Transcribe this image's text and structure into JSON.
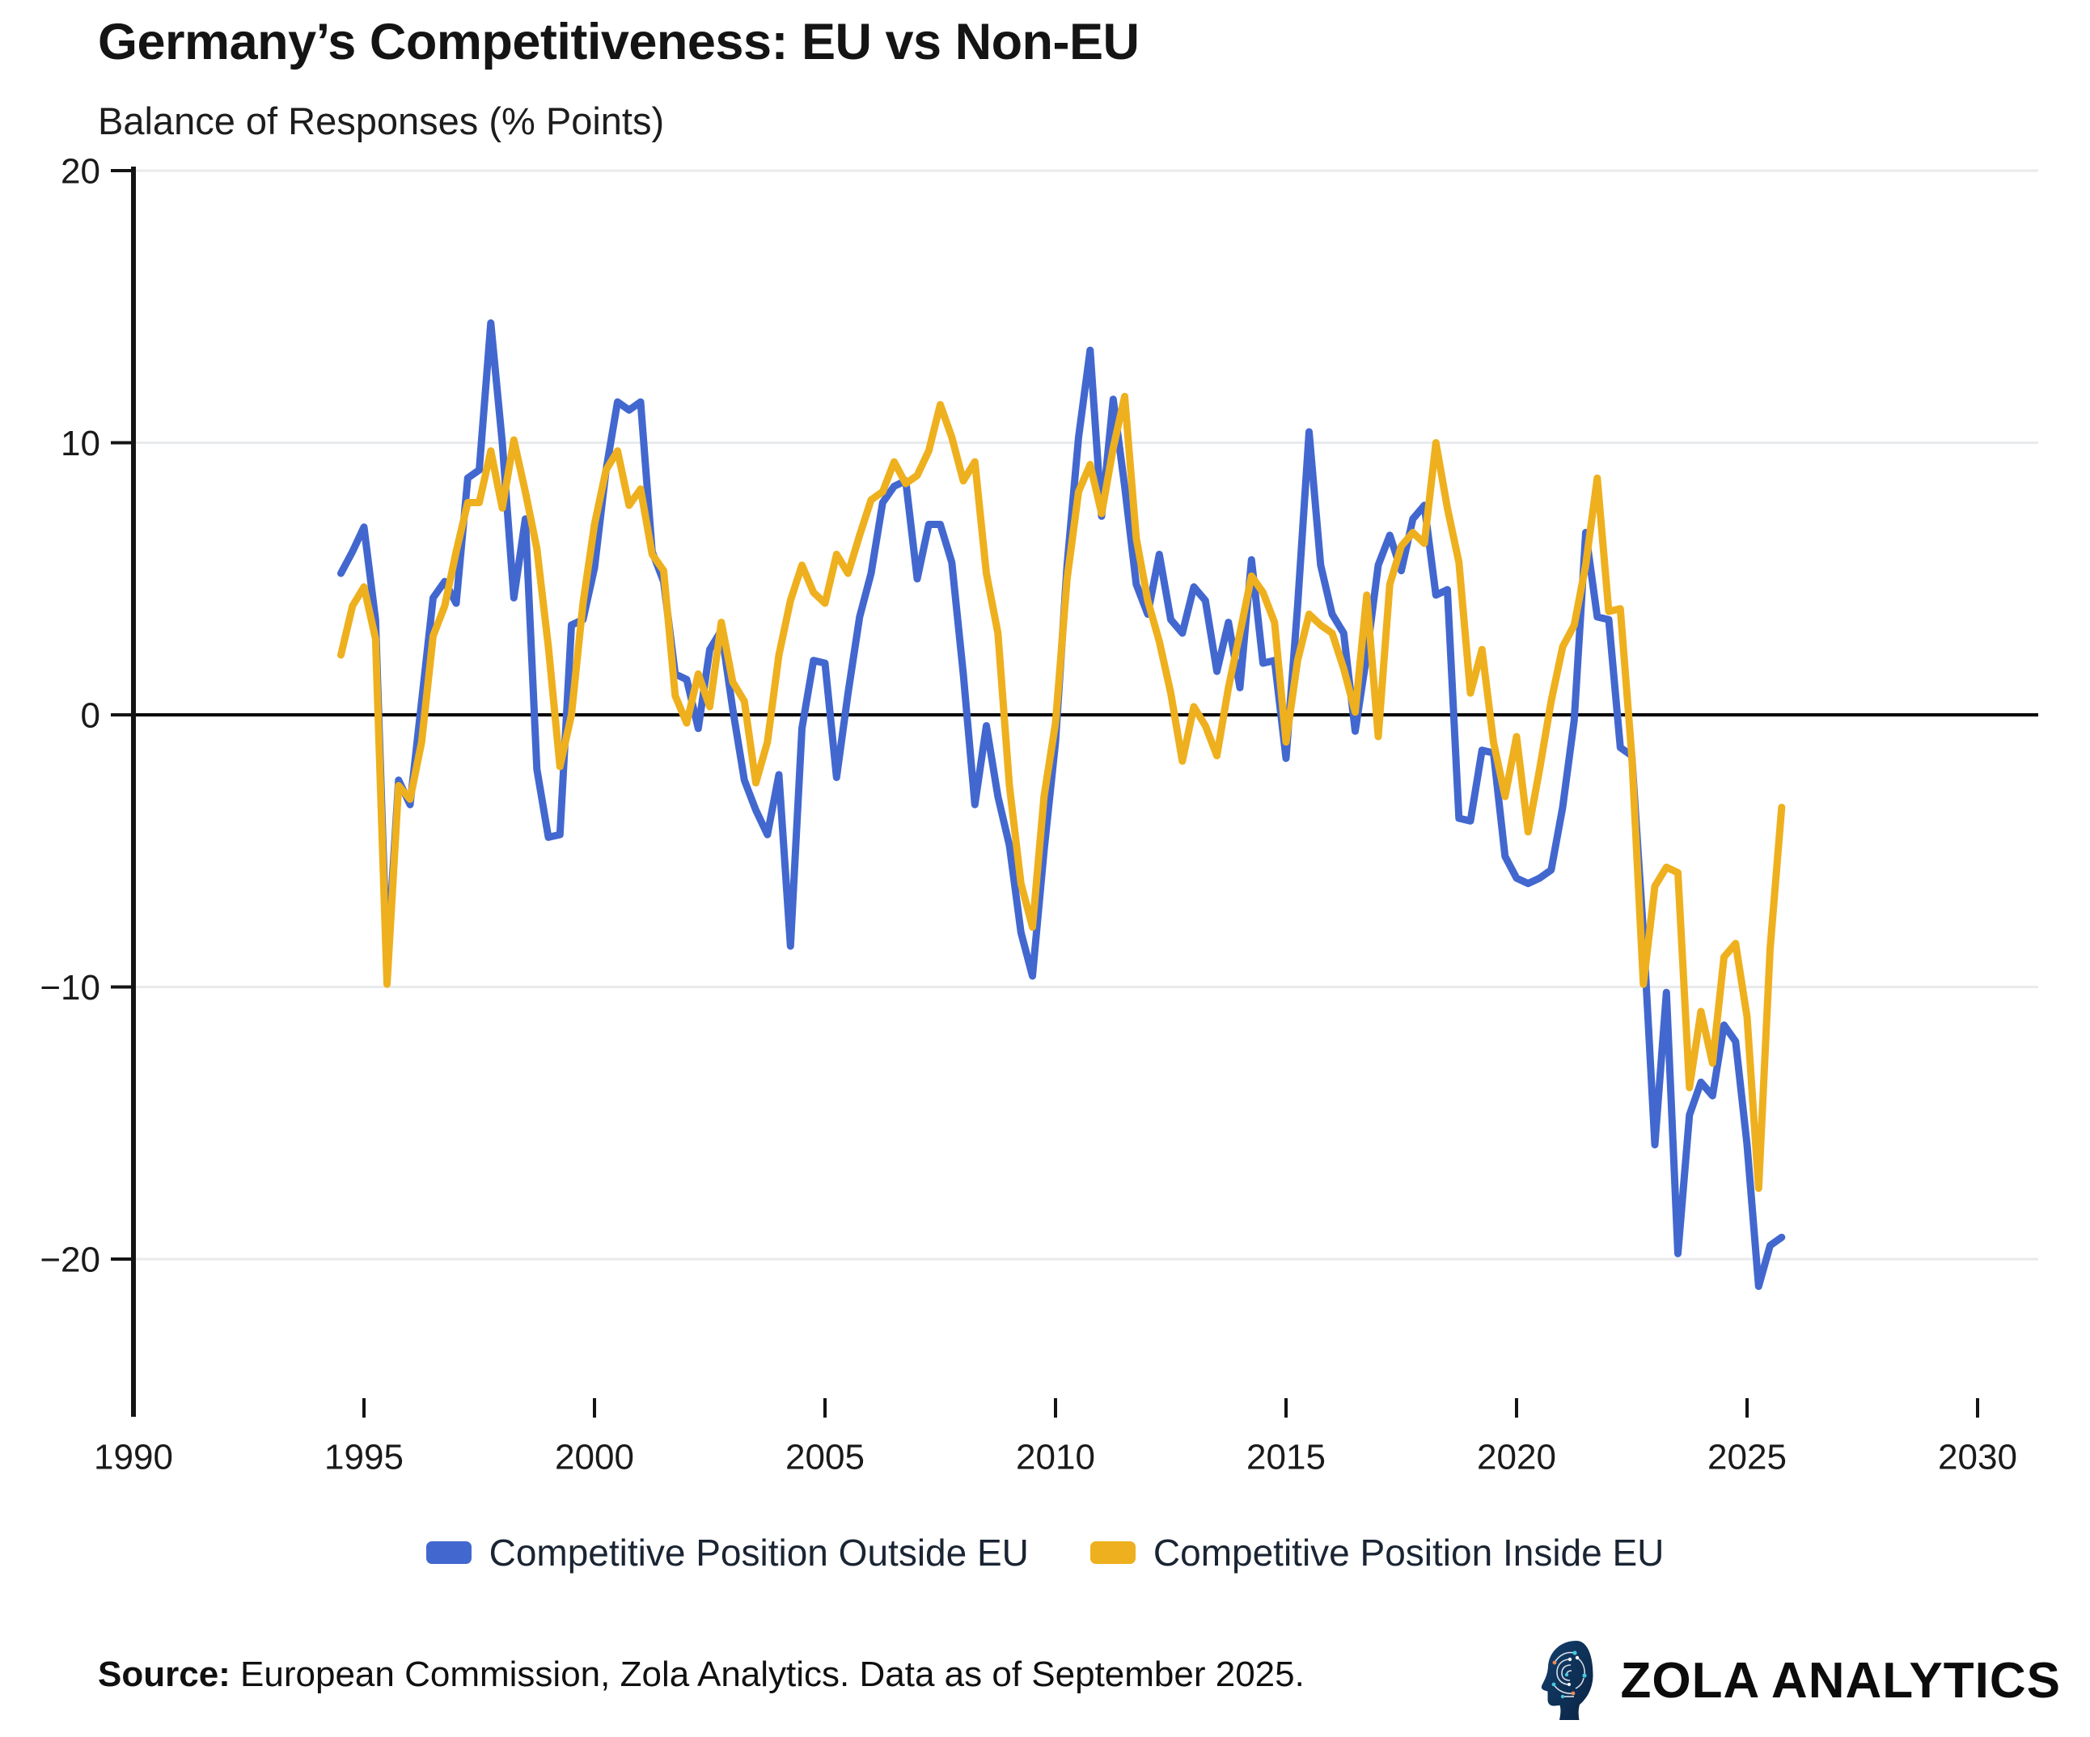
{
  "title": "Germany’s Competitiveness: EU vs Non-EU",
  "subtitle": "Balance of Responses (% Points)",
  "source": {
    "label": "Source:",
    "text": " European Commission, Zola Analytics. Data as of September 2025."
  },
  "branding": {
    "name": "ZOLA ANALYTICS"
  },
  "colors": {
    "outside_eu": "#4268cf",
    "inside_eu": "#eeb01e",
    "zero_line": "#000000",
    "grid": "#e8eaec",
    "axis": "#141414",
    "tick_text": "#1a1a1a",
    "legend_text": "#1a2433",
    "logo_navy_dark": "#0a2342",
    "logo_navy_light": "#14406e",
    "logo_teal": "#45c8e0",
    "logo_orange": "#ec8a58"
  },
  "legend": [
    {
      "label": "Competitive Position Outside EU",
      "color_key": "outside_eu"
    },
    {
      "label": "Competitive Position Inside EU",
      "color_key": "inside_eu"
    }
  ],
  "chart_data": {
    "type": "line",
    "title": "Germany’s Competitiveness: EU vs Non-EU",
    "subtitle": "Balance of Responses (% Points)",
    "xlabel": "",
    "ylabel": "Balance of Responses (% Points)",
    "xlim": [
      1990,
      2030
    ],
    "ylim": [
      -25,
      20
    ],
    "x_ticks": [
      1990,
      1995,
      2000,
      2005,
      2010,
      2015,
      2020,
      2025,
      2030
    ],
    "y_ticks": [
      20,
      10,
      0,
      -10,
      -20
    ],
    "grid": "horizontal",
    "legend_position": "bottom",
    "x_unit": "year (quarterly observations)",
    "x_start": 1994.5,
    "x_step": 0.25,
    "series": [
      {
        "name": "Competitive Position Outside EU",
        "color_key": "outside_eu",
        "values": [
          5.2,
          6.0,
          6.9,
          3.5,
          -9.2,
          -2.4,
          -3.3,
          0.5,
          4.3,
          4.9,
          4.1,
          8.7,
          9.0,
          14.4,
          10.0,
          4.3,
          7.2,
          -2.0,
          -4.5,
          -4.4,
          3.3,
          3.5,
          5.4,
          9.0,
          11.5,
          11.2,
          11.5,
          6.0,
          4.9,
          1.5,
          1.3,
          -0.5,
          2.4,
          3.1,
          0.2,
          -2.4,
          -3.5,
          -4.4,
          -2.2,
          -8.5,
          -0.5,
          2.0,
          1.9,
          -2.3,
          0.8,
          3.6,
          5.2,
          7.8,
          8.4,
          8.6,
          5.0,
          7.0,
          7.0,
          5.6,
          1.5,
          -3.3,
          -0.4,
          -3.0,
          -4.8,
          -8.0,
          -9.6,
          -5.0,
          -1.0,
          5.5,
          10.2,
          13.4,
          7.3,
          11.6,
          8.4,
          4.8,
          3.7,
          5.9,
          3.5,
          3.0,
          4.7,
          4.2,
          1.6,
          3.4,
          1.0,
          5.7,
          1.9,
          2.0,
          -1.6,
          4.0,
          10.4,
          5.5,
          3.7,
          3.0,
          -0.6,
          2.2,
          5.5,
          6.6,
          5.3,
          7.2,
          7.7,
          4.4,
          4.6,
          -3.8,
          -3.9,
          -1.3,
          -1.4,
          -5.2,
          -6.0,
          -6.2,
          -6.0,
          -5.7,
          -3.4,
          -0.2,
          6.7,
          3.6,
          3.5,
          -1.2,
          -1.5,
          -8.0,
          -15.8,
          -10.2,
          -19.8,
          -14.7,
          -13.5,
          -14.0,
          -11.4,
          -12.0,
          -15.8,
          -21.0,
          -19.5,
          -19.2
        ]
      },
      {
        "name": "Competitive Position Inside EU",
        "color_key": "inside_eu",
        "values": [
          2.2,
          4.0,
          4.7,
          2.8,
          -9.9,
          -2.6,
          -3.1,
          -1.0,
          2.9,
          4.0,
          6.0,
          7.8,
          7.8,
          9.7,
          7.6,
          10.1,
          8.2,
          6.1,
          2.5,
          -1.9,
          0.0,
          4.1,
          7.0,
          9.0,
          9.7,
          7.7,
          8.3,
          5.9,
          5.3,
          0.7,
          -0.3,
          1.5,
          0.3,
          3.4,
          1.2,
          0.5,
          -2.5,
          -1.0,
          2.2,
          4.2,
          5.5,
          4.5,
          4.1,
          5.9,
          5.2,
          6.6,
          7.9,
          8.2,
          9.3,
          8.5,
          8.8,
          9.7,
          11.4,
          10.2,
          8.6,
          9.3,
          5.2,
          3.0,
          -2.6,
          -6.2,
          -7.8,
          -3.0,
          -0.3,
          5.0,
          8.2,
          9.2,
          7.4,
          9.8,
          11.7,
          6.5,
          4.2,
          2.7,
          0.8,
          -1.7,
          0.3,
          -0.4,
          -1.5,
          1.0,
          3.0,
          5.1,
          4.5,
          3.4,
          -1.0,
          2.0,
          3.7,
          3.3,
          3.0,
          1.7,
          0.1,
          4.4,
          -0.8,
          4.8,
          6.2,
          6.7,
          6.3,
          10.0,
          7.6,
          5.6,
          0.8,
          2.4,
          -1.0,
          -3.0,
          -0.8,
          -4.3,
          -2.0,
          0.5,
          2.5,
          3.3,
          5.5,
          8.7,
          3.8,
          3.9,
          -1.5,
          -9.9,
          -6.3,
          -5.6,
          -5.8,
          -13.7,
          -10.9,
          -12.8,
          -8.9,
          -8.4,
          -11.1,
          -17.4,
          -8.6,
          -3.4
        ]
      }
    ]
  }
}
